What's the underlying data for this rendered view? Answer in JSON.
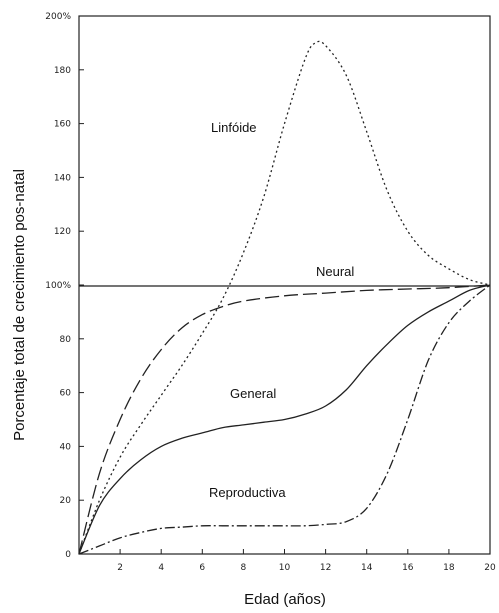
{
  "chart_data": {
    "type": "line",
    "xlabel": "Edad (años)",
    "ylabel": "Porcentaje total de crecimiento pos-natal",
    "xlim": [
      0,
      20
    ],
    "ylim": [
      0,
      200
    ],
    "x_ticks": [
      "2",
      "4",
      "6",
      "8",
      "10",
      "12",
      "14",
      "16",
      "18",
      "20"
    ],
    "y_ticks": [
      "0",
      "20",
      "40",
      "60",
      "80",
      "100%",
      "120",
      "140",
      "160",
      "180",
      "200%"
    ],
    "reference_line": 100,
    "grid": false,
    "series": [
      {
        "name": "Linfóide",
        "style": "dotted",
        "x": [
          0,
          1,
          2,
          3,
          4,
          5,
          6,
          7,
          8,
          9,
          10,
          11,
          11.5,
          12,
          13,
          14,
          15,
          16,
          17,
          18,
          19,
          20
        ],
        "values": [
          0,
          20,
          36,
          48,
          59,
          70,
          82,
          95,
          112,
          133,
          160,
          184,
          190,
          189,
          178,
          157,
          135,
          120,
          111,
          106,
          102,
          100
        ]
      },
      {
        "name": "Neural",
        "style": "long-dash",
        "x": [
          0,
          1,
          2,
          3,
          4,
          5,
          6,
          7,
          8,
          10,
          12,
          14,
          16,
          18,
          20
        ],
        "values": [
          0,
          30,
          50,
          65,
          76,
          84,
          89,
          92,
          94,
          96,
          97,
          98,
          98.5,
          99,
          100
        ]
      },
      {
        "name": "General",
        "style": "solid",
        "x": [
          0,
          1,
          2,
          3,
          4,
          5,
          6,
          7,
          8,
          9,
          10,
          11,
          12,
          13,
          14,
          15,
          16,
          17,
          18,
          19,
          20
        ],
        "values": [
          0,
          18,
          28,
          35,
          40,
          43,
          45,
          47,
          48,
          49,
          50,
          52,
          55,
          61,
          70,
          78,
          85,
          90,
          94,
          98,
          100
        ]
      },
      {
        "name": "Reproductiva",
        "style": "dash-dot",
        "x": [
          0,
          1,
          2,
          3,
          4,
          5,
          6,
          7,
          8,
          9,
          10,
          11,
          12,
          13,
          14,
          15,
          16,
          17,
          18,
          19,
          20
        ],
        "values": [
          0,
          3,
          6,
          8,
          9.5,
          10,
          10.5,
          10.5,
          10.5,
          10.5,
          10.5,
          10.5,
          11,
          12,
          17,
          30,
          50,
          72,
          86,
          94,
          100
        ]
      }
    ]
  }
}
